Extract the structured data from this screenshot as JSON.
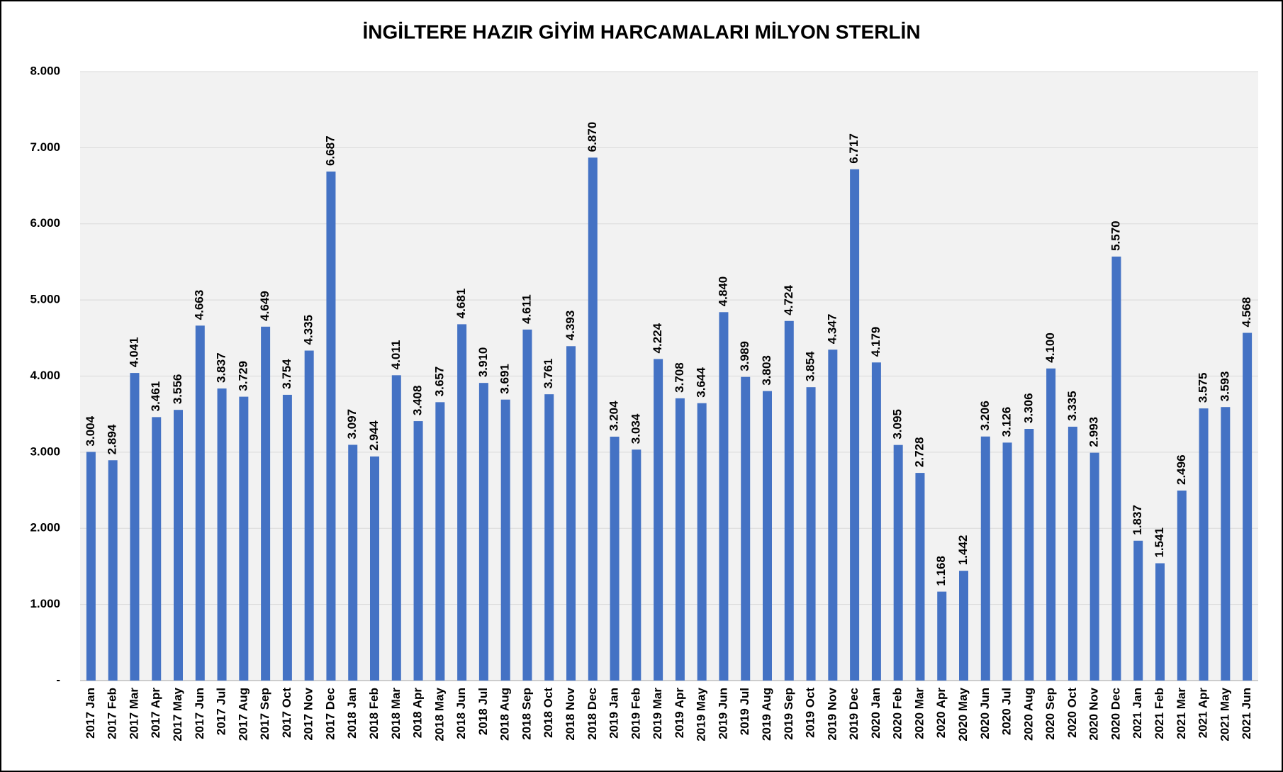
{
  "chart_data": {
    "type": "bar",
    "title": "İNGİLTERE HAZIR GİYİM HARCAMALARI MİLYON STERLİN",
    "categories": [
      "2017 Jan",
      "2017 Feb",
      "2017 Mar",
      "2017 Apr",
      "2017 May",
      "2017 Jun",
      "2017 Jul",
      "2017 Aug",
      "2017 Sep",
      "2017 Oct",
      "2017 Nov",
      "2017 Dec",
      "2018 Jan",
      "2018 Feb",
      "2018 Mar",
      "2018 Apr",
      "2018 May",
      "2018 Jun",
      "2018 Jul",
      "2018 Aug",
      "2018 Sep",
      "2018 Oct",
      "2018 Nov",
      "2018 Dec",
      "2019 Jan",
      "2019 Feb",
      "2019 Mar",
      "2019 Apr",
      "2019 May",
      "2019 Jun",
      "2019 Jul",
      "2019 Aug",
      "2019 Sep",
      "2019 Oct",
      "2019 Nov",
      "2019 Dec",
      "2020 Jan",
      "2020 Feb",
      "2020 Mar",
      "2020 Apr",
      "2020 May",
      "2020 Jun",
      "2020 Jul",
      "2020 Aug",
      "2020 Sep",
      "2020 Oct",
      "2020 Nov",
      "2020 Dec",
      "2021 Jan",
      "2021 Feb",
      "2021 Mar",
      "2021 Apr",
      "2021 May",
      "2021 Jun"
    ],
    "values": [
      3004,
      2894,
      4041,
      3461,
      3556,
      4663,
      3837,
      3729,
      4649,
      3754,
      4335,
      6687,
      3097,
      2944,
      4011,
      3408,
      3657,
      4681,
      3910,
      3691,
      4611,
      3761,
      4393,
      6870,
      3204,
      3034,
      4224,
      3708,
      3644,
      4840,
      3989,
      3803,
      4724,
      3854,
      4347,
      6717,
      4179,
      3095,
      2728,
      1168,
      1442,
      3206,
      3126,
      3306,
      4100,
      3335,
      2993,
      5570,
      1837,
      1541,
      2496,
      3575,
      3593,
      4568
    ],
    "value_labels": [
      "3.004",
      "2.894",
      "4.041",
      "3.461",
      "3.556",
      "4.663",
      "3.837",
      "3.729",
      "4.649",
      "3.754",
      "4.335",
      "6.687",
      "3.097",
      "2.944",
      "4.011",
      "3.408",
      "3.657",
      "4.681",
      "3.910",
      "3.691",
      "4.611",
      "3.761",
      "4.393",
      "6.870",
      "3.204",
      "3.034",
      "4.224",
      "3.708",
      "3.644",
      "4.840",
      "3.989",
      "3.803",
      "4.724",
      "3.854",
      "4.347",
      "6.717",
      "4.179",
      "3.095",
      "2.728",
      "1.168",
      "1.442",
      "3.206",
      "3.126",
      "3.306",
      "4.100",
      "3.335",
      "2.993",
      "5.570",
      "1.837",
      "1.541",
      "2.496",
      "3.575",
      "3.593",
      "4.568"
    ],
    "color": "#4472c4",
    "ylim": [
      0,
      8000
    ],
    "yticks": [
      {
        "value": 0,
        "label": "-"
      },
      {
        "value": 1000,
        "label": "1.000"
      },
      {
        "value": 2000,
        "label": "2.000"
      },
      {
        "value": 3000,
        "label": "3.000"
      },
      {
        "value": 4000,
        "label": "4.000"
      },
      {
        "value": 5000,
        "label": "5.000"
      },
      {
        "value": 6000,
        "label": "6.000"
      },
      {
        "value": 7000,
        "label": "7.000"
      },
      {
        "value": 8000,
        "label": "8.000"
      }
    ],
    "grid": true
  }
}
